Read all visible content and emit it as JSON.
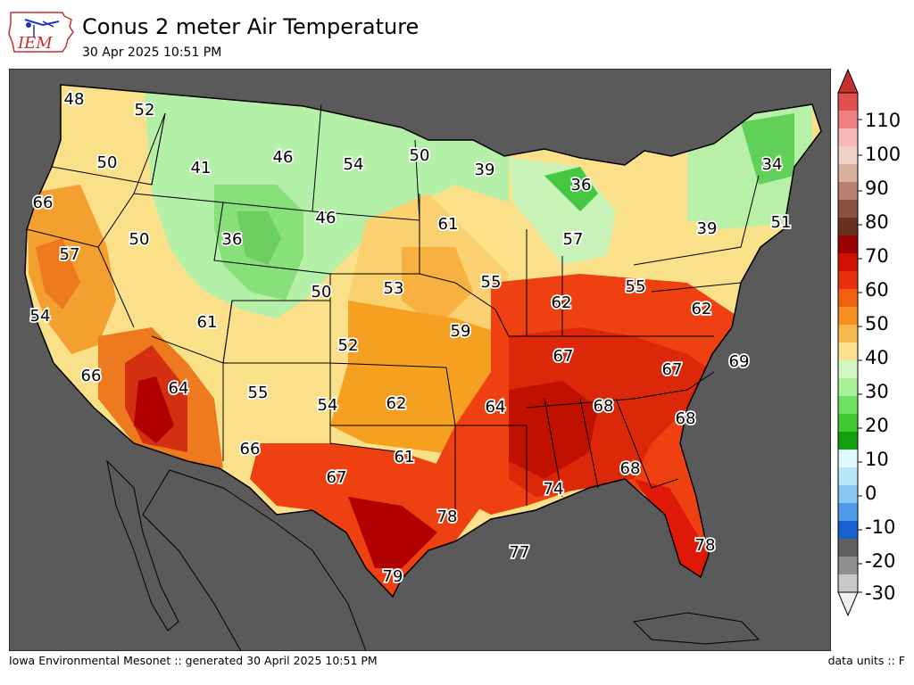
{
  "header": {
    "logo_text": "IEM",
    "title": "Conus 2 meter Air Temperature",
    "subtitle": "30 Apr 2025 10:51 PM"
  },
  "footer": {
    "left": "Iowa Environmental Mesonet :: generated 30 April 2025 10:51 PM",
    "right": "data units :: F"
  },
  "colorbar": {
    "tick_labels": [
      "110",
      "100",
      "90",
      "80",
      "70",
      "60",
      "50",
      "40",
      "30",
      "20",
      "10",
      "0",
      "-10",
      "-20",
      "-30"
    ],
    "colors": {
      "100_120": "#d86a6a",
      "90_100": "#a07060",
      "80_90": "#6a3a2a",
      "60_80": "#e83010",
      "50_60": "#f5a020",
      "40_50": "#b0f0a0",
      "20_40": "#20b020",
      "0_20": "#80c8f0",
      "neg10_0": "#1060d0",
      "neg30_neg10": "#c0c0c0"
    }
  },
  "map": {
    "background_color": "#5a5a5a",
    "station_values": [
      {
        "label": "48"
      },
      {
        "label": "52"
      },
      {
        "label": "50"
      },
      {
        "label": "41"
      },
      {
        "label": "46"
      },
      {
        "label": "54"
      },
      {
        "label": "50"
      },
      {
        "label": "39"
      },
      {
        "label": "36"
      },
      {
        "label": "34"
      },
      {
        "label": "66"
      },
      {
        "label": "57"
      },
      {
        "label": "50"
      },
      {
        "label": "36"
      },
      {
        "label": "46"
      },
      {
        "label": "61"
      },
      {
        "label": "57"
      },
      {
        "label": "39"
      },
      {
        "label": "51"
      },
      {
        "label": "54"
      },
      {
        "label": "50"
      },
      {
        "label": "53"
      },
      {
        "label": "55"
      },
      {
        "label": "55"
      },
      {
        "label": "62"
      },
      {
        "label": "62"
      },
      {
        "label": "61"
      },
      {
        "label": "52"
      },
      {
        "label": "59"
      },
      {
        "label": "67"
      },
      {
        "label": "67"
      },
      {
        "label": "69"
      },
      {
        "label": "66"
      },
      {
        "label": "64"
      },
      {
        "label": "55"
      },
      {
        "label": "54"
      },
      {
        "label": "62"
      },
      {
        "label": "64"
      },
      {
        "label": "68"
      },
      {
        "label": "68"
      },
      {
        "label": "66"
      },
      {
        "label": "61"
      },
      {
        "label": "67"
      },
      {
        "label": "68"
      },
      {
        "label": "74"
      },
      {
        "label": "78"
      },
      {
        "label": "77"
      },
      {
        "label": "78"
      },
      {
        "label": "79"
      }
    ]
  }
}
